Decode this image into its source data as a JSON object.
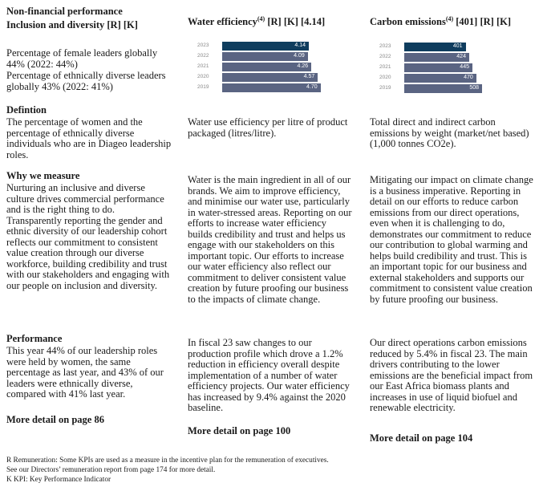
{
  "header": {
    "section": "Non-financial performance",
    "title": "Inclusion and diversity [R] [K]"
  },
  "colors": {
    "highlight_bar": "#0f3d5e",
    "bar": "#5a6482"
  },
  "diversity": {
    "summary": "Percentage of female leaders globally\n44% (2022: 44%)\nPercentage of ethnically diverse leaders\nglobally 43% (2022: 41%)",
    "definition_heading": "Defintion",
    "definition": "The percentage of women and the\npercentage of ethnically diverse\nindividuals who are in Diageo leadership\nroles.",
    "why_heading": "Why we measure",
    "why": "Nurturing an inclusive and diverse\nculture drives commercial performance\nand is the right thing to do.\nTransparently reporting the gender and\nethnic diversity of our leadership cohort\nreflects our commitment to consistent\nvalue creation through our diverse\nworkforce, building credibility and trust\nwith our stakeholders and engaging with\nour people on inclusion and diversity.",
    "performance_heading": "Performance",
    "performance": "This year 44% of our leadership roles\nwere held by women, the same\npercentage as last year, and 43% of our\nleaders were ethnically diverse,\ncompared with 41%  last year.",
    "more": "More detail on page 86"
  },
  "water": {
    "title": "Water efficiency",
    "sup": "(4)",
    "tags": " [R] [K] [4.14]",
    "definition": "Water use efficiency per litre of product\npackaged (litres/litre).",
    "why": "Water is the main ingredient in all of our\nbrands. We aim to improve efficiency,\nand minimise our water use, particularly\nin water-stressed areas. Reporting on our\nefforts to increase water efficiency\nbuilds credibility and trust and helps us\nengage with our stakeholders on this\nimportant topic. Our efforts to increase\nour water efficiency also reflect our\ncommitment to deliver consistent value\ncreation by future proofing our business\nto the impacts of climate change.",
    "performance": "In fiscal 23 saw changes to our\nproduction profile which drove a 1.2%\nreduction in efficiency overall despite\nimplementation of a number of water\nefficiency projects. Our water efficiency\nhas increased by 9.4% against the 2020\nbaseline.",
    "more": "More detail on page 100"
  },
  "carbon": {
    "title": "Carbon emissions",
    "sup": "(4)",
    "tags": " [401] [R] [K]",
    "definition": "Total direct and indirect carbon\nemissions by weight (market/net based)\n(1,000 tonnes CO2e).",
    "why": "Mitigating our impact on climate change\nis a business imperative. Reporting in\ndetail on our efforts to reduce carbon\nemissions from our direct operations,\neven when it is challenging to do,\ndemonstrates our commitment to reduce\nour contribution to global warming and\nhelps build credibility and trust. This is\nan important topic for our business and\nexternal stakeholders and supports our\ncommitment to consistent value creation\nby future proofing our business.",
    "performance": "Our direct operations carbon emissions\nreduced by 5.4% in fiscal 23. The main\ndrivers contributing to the lower\nemissions are the beneficial impact from\nour East Africa biomass plants and\nincreases in use of liquid biofuel and\nrenewable electricity.",
    "more": "More detail on page 104"
  },
  "chart_data": [
    {
      "type": "bar",
      "orientation": "horizontal",
      "categories": [
        "2023",
        "2022",
        "2021",
        "2020",
        "2019"
      ],
      "values": [
        4.14,
        4.09,
        4.26,
        4.57,
        4.7
      ],
      "labels": [
        "4.14",
        "4.09",
        "4.26",
        "4.57",
        "4.70"
      ],
      "highlight": "2023"
    },
    {
      "type": "bar",
      "orientation": "horizontal",
      "categories": [
        "2023",
        "2022",
        "2021",
        "2020",
        "2019"
      ],
      "values": [
        401,
        424,
        445,
        470,
        508
      ],
      "labels": [
        "401",
        "424",
        "445",
        "470",
        "508"
      ],
      "highlight": "2023"
    }
  ],
  "footer": "R Remuneration: Some KPIs are used as a measure in the incentive plan for the remuneration of executives.\nSee our Directors’ remuneration report from page 174 for more detail.\nK KPI: Key Performance Indicator"
}
